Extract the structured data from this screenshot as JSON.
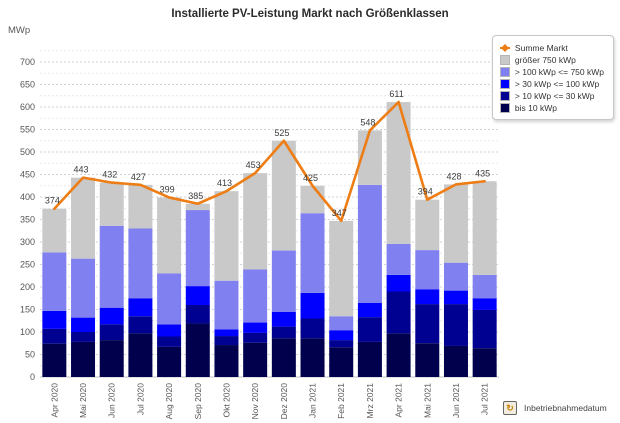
{
  "title": "Installierte PV-Leistung Markt nach Größenklassen",
  "y_axis_unit": "MWp",
  "x_axis_note": "Inbetriebnahmedatum",
  "colors": {
    "line": "#ed7d14",
    "gt750": "#c9c9c9",
    "kw100_750": "#8080f0",
    "kw30_100": "#0000fe",
    "kw10_30": "#000091",
    "bis10": "#00004d",
    "grid_major": "#d2d2d2",
    "grid_minor": "#e9e9e9",
    "axis_line": "#c0c0c0",
    "tick_text": "#555555",
    "point_label": "#3c3c3c"
  },
  "chart_data": {
    "type": "bar",
    "subtype": "stacked-bar-with-line",
    "categories": [
      "Apr 2020",
      "Mai 2020",
      "Jun 2020",
      "Jul 2020",
      "Aug 2020",
      "Sep 2020",
      "Okt 2020",
      "Nov 2020",
      "Dez 2020",
      "Jan 2021",
      "Feb 2021",
      "Mrz 2021",
      "Apr 2021",
      "Mai 2021",
      "Jun 2021",
      "Jul 2021"
    ],
    "series": [
      {
        "name": "bis 10 kWp",
        "color": "#00004d",
        "values": [
          74,
          78,
          82,
          97,
          67,
          119,
          71,
          76,
          86,
          86,
          66,
          78,
          97,
          75,
          69,
          64
        ]
      },
      {
        "name": "> 10 kWp <= 30 kWp",
        "color": "#000091",
        "values": [
          33,
          22,
          35,
          38,
          23,
          41,
          20,
          22,
          26,
          44,
          16,
          55,
          93,
          87,
          93,
          85
        ]
      },
      {
        "name": "> 30 kWp <= 100 kWp",
        "color": "#0000fe",
        "values": [
          40,
          32,
          37,
          40,
          27,
          42,
          15,
          23,
          33,
          57,
          22,
          32,
          37,
          33,
          30,
          26
        ]
      },
      {
        "name": "> 100 kWp <= 750 kWp",
        "color": "#8080f0",
        "values": [
          130,
          131,
          182,
          155,
          113,
          169,
          108,
          118,
          136,
          177,
          31,
          262,
          69,
          87,
          62,
          52
        ]
      },
      {
        "name": "größer 750 kWp",
        "color": "#c9c9c9",
        "values": [
          97,
          180,
          96,
          97,
          169,
          14,
          199,
          214,
          244,
          61,
          212,
          121,
          315,
          112,
          174,
          208
        ]
      }
    ],
    "line_series": {
      "name": "Summe Markt",
      "color": "#ed7d14",
      "values": [
        374,
        443,
        432,
        427,
        399,
        385,
        413,
        453,
        525,
        425,
        347,
        548,
        611,
        394,
        428,
        435
      ]
    },
    "title": "Installierte PV-Leistung Markt nach Größenklassen",
    "xlabel": "Inbetriebnahmedatum",
    "ylabel": "MWp",
    "ylim": [
      0,
      700
    ],
    "ytick_step": 50,
    "yticks": [
      0,
      50,
      100,
      150,
      200,
      250,
      300,
      350,
      400,
      450,
      500,
      550,
      600,
      650,
      700
    ],
    "grid": true,
    "legend_position": "top-right"
  },
  "legend": {
    "items": [
      {
        "label": "Summe Markt",
        "type": "line",
        "color": "#ed7d14"
      },
      {
        "label": "größer 750 kWp",
        "type": "box",
        "color": "#c9c9c9"
      },
      {
        "label": "> 100 kWp <= 750 kWp",
        "type": "box",
        "color": "#8080f0"
      },
      {
        "label": "> 30 kWp <= 100 kWp",
        "type": "box",
        "color": "#0000fe"
      },
      {
        "label": "> 10 kWp <= 30 kWp",
        "type": "box",
        "color": "#000091"
      },
      {
        "label": "bis 10 kWp",
        "type": "box",
        "color": "#00004d"
      }
    ]
  }
}
